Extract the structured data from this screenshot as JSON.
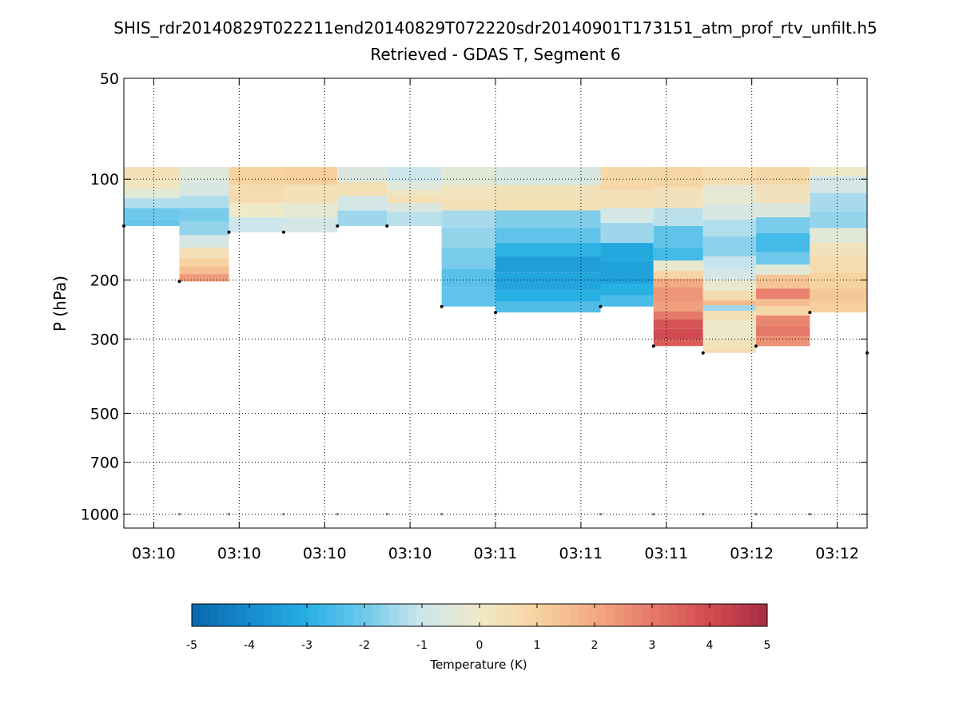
{
  "chart_data": {
    "type": "heatmap",
    "title": "SHIS_rdr20140829T022211end20140829T072220sdr20140901T173151_atm_prof_rtv_unfilt.h5",
    "subtitle": "Retrieved - GDAS T, Segment 6",
    "xlabel": "",
    "ylabel": "P (hPa)",
    "y_scale": "log",
    "y_reversed": true,
    "ylim": [
      1100,
      50
    ],
    "yticks": [
      50,
      100,
      200,
      300,
      500,
      700,
      1000
    ],
    "xlim": [
      -0.35,
      8.35
    ],
    "xticks": [
      0,
      1,
      2,
      3,
      4,
      5,
      6,
      7,
      8
    ],
    "xtick_labels": [
      "03:10",
      "03:10",
      "03:10",
      "03:10",
      "03:11",
      "03:11",
      "03:11",
      "03:12",
      "03:12"
    ],
    "grid": true,
    "colorbar": {
      "label": "Temperature (K)",
      "min": -5,
      "max": 5,
      "ticks": [
        -5,
        -4,
        -3,
        -2,
        -1,
        0,
        1,
        2,
        3,
        4,
        5
      ]
    },
    "top_pressure": 90,
    "profiles": [
      {
        "x0": -0.35,
        "x1": 0.3,
        "sfc": 138,
        "layers": [
          [
            0.4,
            92
          ],
          [
            0.2,
            100
          ],
          [
            -0.4,
            107
          ],
          [
            -1.3,
            114
          ],
          [
            -2.0,
            122
          ],
          [
            -2.1,
            132
          ]
        ]
      },
      {
        "x0": 0.3,
        "x1": 0.88,
        "sfc": 202,
        "layers": [
          [
            -0.5,
            92
          ],
          [
            -0.7,
            102
          ],
          [
            -1.3,
            112
          ],
          [
            -1.9,
            122
          ],
          [
            -1.6,
            134
          ],
          [
            -0.8,
            147
          ],
          [
            0.4,
            160
          ],
          [
            1.0,
            172
          ],
          [
            1.5,
            182
          ],
          [
            2.3,
            192
          ]
        ]
      },
      {
        "x0": 0.88,
        "x1": 1.52,
        "sfc": 144,
        "layers": [
          [
            1.0,
            92
          ],
          [
            0.6,
            104
          ],
          [
            0.0,
            118
          ],
          [
            -1.0,
            130
          ]
        ]
      },
      {
        "x0": 1.52,
        "x1": 2.15,
        "sfc": 144,
        "layers": [
          [
            1.1,
            92
          ],
          [
            0.4,
            104
          ],
          [
            -0.3,
            118
          ],
          [
            -0.8,
            130
          ]
        ]
      },
      {
        "x0": 2.15,
        "x1": 2.73,
        "sfc": 138,
        "layers": [
          [
            -0.6,
            92
          ],
          [
            0.5,
            102
          ],
          [
            -0.8,
            112
          ],
          [
            -1.5,
            124
          ]
        ]
      },
      {
        "x0": 2.73,
        "x1": 3.37,
        "sfc": 138,
        "layers": [
          [
            -1.0,
            92
          ],
          [
            -0.5,
            102
          ],
          [
            0.2,
            108
          ],
          [
            0.5,
            113
          ],
          [
            -0.6,
            118
          ],
          [
            -1.2,
            125
          ]
        ]
      },
      {
        "x0": 3.37,
        "x1": 4.0,
        "sfc": 240,
        "layers": [
          [
            -0.4,
            92
          ],
          [
            0.2,
            104
          ],
          [
            0.4,
            114
          ],
          [
            -1.4,
            124
          ],
          [
            -1.6,
            140
          ],
          [
            -1.9,
            160
          ],
          [
            -2.3,
            185
          ],
          [
            -2.2,
            210
          ]
        ]
      },
      {
        "x0": 4.0,
        "x1": 5.23,
        "sfc": 250,
        "layers": [
          [
            -0.7,
            92
          ],
          [
            0.3,
            104
          ],
          [
            0.5,
            114
          ],
          [
            -1.8,
            124
          ],
          [
            -2.2,
            140
          ],
          [
            -2.9,
            155
          ],
          [
            -3.5,
            170
          ],
          [
            -3.3,
            190
          ],
          [
            -3.0,
            215
          ],
          [
            -2.4,
            232
          ]
        ]
      },
      {
        "x0": 5.23,
        "x1": 5.85,
        "sfc": 240,
        "layers": [
          [
            0.8,
            92
          ],
          [
            0.4,
            108
          ],
          [
            -0.8,
            122
          ],
          [
            -1.5,
            135
          ],
          [
            -3.2,
            155
          ],
          [
            -3.4,
            175
          ],
          [
            -3.0,
            205
          ],
          [
            -2.5,
            222
          ]
        ]
      },
      {
        "x0": 5.85,
        "x1": 6.43,
        "sfc": 315,
        "layers": [
          [
            0.9,
            92
          ],
          [
            0.3,
            106
          ],
          [
            -1.2,
            122
          ],
          [
            -2.2,
            138
          ],
          [
            -2.6,
            160
          ],
          [
            -0.2,
            175
          ],
          [
            0.9,
            188
          ],
          [
            2.0,
            198
          ],
          [
            2.4,
            210
          ],
          [
            2.2,
            232
          ],
          [
            3.0,
            248
          ],
          [
            3.8,
            262
          ],
          [
            4.0,
            280
          ],
          [
            3.6,
            300
          ]
        ]
      },
      {
        "x0": 6.43,
        "x1": 7.05,
        "sfc": 330,
        "layers": [
          [
            0.6,
            92
          ],
          [
            -0.3,
            104
          ],
          [
            -0.7,
            118
          ],
          [
            -1.3,
            132
          ],
          [
            -1.7,
            148
          ],
          [
            -1.1,
            170
          ],
          [
            -0.8,
            185
          ],
          [
            -0.2,
            200
          ],
          [
            0.6,
            215
          ],
          [
            1.6,
            230
          ],
          [
            -1.5,
            238
          ],
          [
            0.4,
            247
          ],
          [
            -0.1,
            265
          ],
          [
            0.3,
            300
          ],
          [
            0.5,
            320
          ]
        ]
      },
      {
        "x0": 7.05,
        "x1": 7.68,
        "sfc": 315,
        "layers": [
          [
            0.8,
            92
          ],
          [
            0.3,
            104
          ],
          [
            -0.6,
            118
          ],
          [
            -1.9,
            130
          ],
          [
            -2.6,
            145
          ],
          [
            -2.0,
            165
          ],
          [
            -0.4,
            180
          ],
          [
            1.4,
            193
          ],
          [
            2.8,
            212
          ],
          [
            1.5,
            228
          ],
          [
            0.8,
            240
          ],
          [
            2.7,
            255
          ],
          [
            3.0,
            275
          ],
          [
            2.5,
            295
          ]
        ]
      },
      {
        "x0": 7.68,
        "x1": 8.35,
        "sfc": 250,
        "layers": [
          [
            0.0,
            92
          ],
          [
            -0.8,
            98
          ],
          [
            -1.4,
            110
          ],
          [
            -1.6,
            125
          ],
          [
            -0.4,
            140
          ],
          [
            0.3,
            155
          ],
          [
            0.6,
            170
          ],
          [
            1.0,
            190
          ],
          [
            1.3,
            212
          ],
          [
            1.1,
            232
          ]
        ]
      }
    ],
    "surface_markers": [
      {
        "x": -0.35,
        "p": 138
      },
      {
        "x": 0.3,
        "p": 202
      },
      {
        "x": 0.88,
        "p": 144
      },
      {
        "x": 1.52,
        "p": 144
      },
      {
        "x": 2.15,
        "p": 138
      },
      {
        "x": 2.73,
        "p": 138
      },
      {
        "x": 3.37,
        "p": 240
      },
      {
        "x": 4.0,
        "p": 250
      },
      {
        "x": 5.23,
        "p": 240
      },
      {
        "x": 5.85,
        "p": 315
      },
      {
        "x": 6.43,
        "p": 330
      },
      {
        "x": 7.05,
        "p": 315
      },
      {
        "x": 7.68,
        "p": 250
      },
      {
        "x": 8.35,
        "p": 330
      }
    ],
    "ground_markers_p": 1000
  }
}
